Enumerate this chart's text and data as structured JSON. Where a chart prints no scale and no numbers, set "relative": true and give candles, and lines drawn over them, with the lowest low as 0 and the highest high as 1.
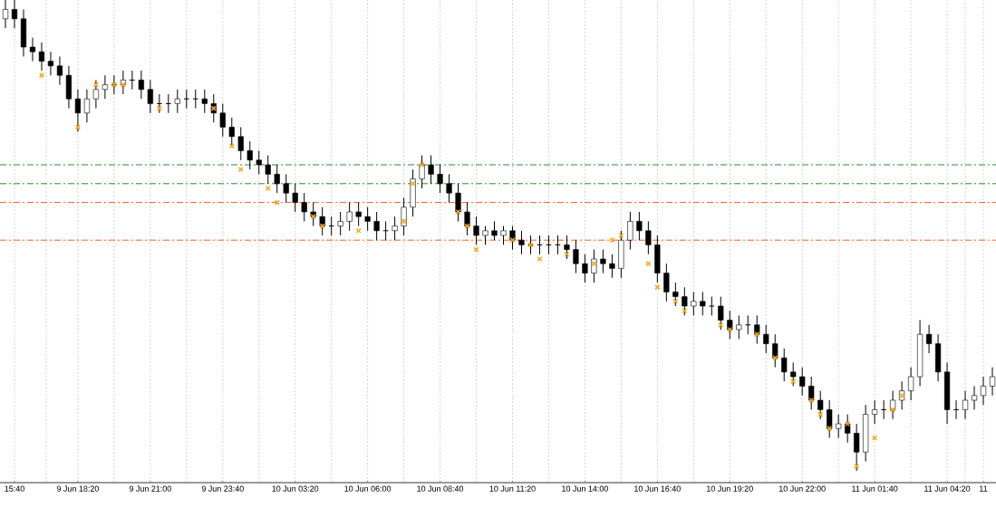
{
  "chart_data": {
    "type": "candlestick",
    "relative": true,
    "grid": true,
    "marker": "cross",
    "categories": [
      null,
      "15:40",
      null,
      null,
      null,
      null,
      null,
      null,
      "9 Jun 18:20",
      null,
      null,
      null,
      null,
      null,
      null,
      null,
      "9 Jun 21:00",
      null,
      null,
      null,
      null,
      null,
      null,
      null,
      "9 Jun 23:40",
      null,
      null,
      null,
      null,
      null,
      null,
      null,
      "10 Jun 03:20",
      null,
      null,
      null,
      null,
      null,
      null,
      null,
      "10 Jun 06:00",
      null,
      null,
      null,
      null,
      null,
      null,
      null,
      "10 Jun 08:40",
      null,
      null,
      null,
      null,
      null,
      null,
      null,
      "10 Jun 11:20",
      null,
      null,
      null,
      null,
      null,
      null,
      null,
      "10 Jun 14:00",
      null,
      null,
      null,
      null,
      null,
      null,
      null,
      "10 Jun 16:40",
      null,
      null,
      null,
      null,
      null,
      null,
      null,
      "10 Jun 19:20",
      null,
      null,
      null,
      null,
      null,
      null,
      null,
      "10 Jun 22:00",
      null,
      null,
      null,
      null,
      null,
      null,
      null,
      "11 Jun 01:40",
      null,
      null,
      null,
      null,
      null,
      null,
      null,
      "11 Jun 04:20",
      null,
      null,
      null,
      "11",
      null
    ],
    "ohlc": [
      [
        0.96,
        1.0,
        0.94,
        0.98
      ],
      [
        0.98,
        1.0,
        0.94,
        0.96
      ],
      [
        0.96,
        0.98,
        0.88,
        0.9
      ],
      [
        0.9,
        0.92,
        0.87,
        0.89
      ],
      [
        0.89,
        0.91,
        0.85,
        0.87
      ],
      [
        0.87,
        0.89,
        0.84,
        0.86
      ],
      [
        0.86,
        0.88,
        0.82,
        0.84
      ],
      [
        0.84,
        0.86,
        0.77,
        0.79
      ],
      [
        0.79,
        0.81,
        0.72,
        0.76
      ],
      [
        0.76,
        0.81,
        0.74,
        0.79
      ],
      [
        0.79,
        0.83,
        0.77,
        0.81
      ],
      [
        0.81,
        0.84,
        0.79,
        0.82
      ],
      [
        0.82,
        0.84,
        0.8,
        0.82
      ],
      [
        0.82,
        0.85,
        0.8,
        0.83
      ],
      [
        0.83,
        0.85,
        0.81,
        0.83
      ],
      [
        0.83,
        0.85,
        0.79,
        0.81
      ],
      [
        0.81,
        0.83,
        0.76,
        0.78
      ],
      [
        0.78,
        0.8,
        0.76,
        0.78
      ],
      [
        0.78,
        0.8,
        0.76,
        0.78
      ],
      [
        0.78,
        0.81,
        0.76,
        0.79
      ],
      [
        0.79,
        0.81,
        0.77,
        0.79
      ],
      [
        0.79,
        0.81,
        0.77,
        0.79
      ],
      [
        0.79,
        0.81,
        0.76,
        0.78
      ],
      [
        0.78,
        0.8,
        0.74,
        0.76
      ],
      [
        0.76,
        0.78,
        0.71,
        0.73
      ],
      [
        0.73,
        0.75,
        0.69,
        0.71
      ],
      [
        0.71,
        0.73,
        0.66,
        0.68
      ],
      [
        0.68,
        0.7,
        0.64,
        0.66
      ],
      [
        0.66,
        0.68,
        0.63,
        0.65
      ],
      [
        0.65,
        0.67,
        0.61,
        0.63
      ],
      [
        0.63,
        0.65,
        0.59,
        0.61
      ],
      [
        0.61,
        0.63,
        0.57,
        0.59
      ],
      [
        0.59,
        0.61,
        0.55,
        0.57
      ],
      [
        0.57,
        0.59,
        0.53,
        0.55
      ],
      [
        0.55,
        0.57,
        0.52,
        0.54
      ],
      [
        0.54,
        0.56,
        0.5,
        0.52
      ],
      [
        0.52,
        0.54,
        0.5,
        0.52
      ],
      [
        0.52,
        0.55,
        0.5,
        0.53
      ],
      [
        0.53,
        0.57,
        0.51,
        0.55
      ],
      [
        0.55,
        0.57,
        0.52,
        0.54
      ],
      [
        0.54,
        0.56,
        0.51,
        0.53
      ],
      [
        0.53,
        0.55,
        0.49,
        0.51
      ],
      [
        0.51,
        0.53,
        0.49,
        0.51
      ],
      [
        0.51,
        0.54,
        0.49,
        0.52
      ],
      [
        0.52,
        0.58,
        0.5,
        0.56
      ],
      [
        0.56,
        0.64,
        0.54,
        0.62
      ],
      [
        0.62,
        0.67,
        0.6,
        0.65
      ],
      [
        0.65,
        0.67,
        0.61,
        0.63
      ],
      [
        0.63,
        0.65,
        0.59,
        0.61
      ],
      [
        0.61,
        0.63,
        0.57,
        0.59
      ],
      [
        0.59,
        0.61,
        0.53,
        0.55
      ],
      [
        0.55,
        0.57,
        0.5,
        0.52
      ],
      [
        0.52,
        0.54,
        0.48,
        0.5
      ],
      [
        0.5,
        0.52,
        0.48,
        0.51
      ],
      [
        0.51,
        0.53,
        0.49,
        0.5
      ],
      [
        0.5,
        0.52,
        0.48,
        0.51
      ],
      [
        0.51,
        0.52,
        0.47,
        0.49
      ],
      [
        0.49,
        0.51,
        0.46,
        0.48
      ],
      [
        0.48,
        0.5,
        0.46,
        0.48
      ],
      [
        0.48,
        0.5,
        0.46,
        0.48
      ],
      [
        0.48,
        0.5,
        0.46,
        0.48
      ],
      [
        0.48,
        0.5,
        0.46,
        0.48
      ],
      [
        0.48,
        0.5,
        0.45,
        0.47
      ],
      [
        0.47,
        0.49,
        0.42,
        0.44
      ],
      [
        0.44,
        0.46,
        0.4,
        0.42
      ],
      [
        0.42,
        0.47,
        0.4,
        0.45
      ],
      [
        0.45,
        0.47,
        0.42,
        0.44
      ],
      [
        0.44,
        0.46,
        0.41,
        0.43
      ],
      [
        0.43,
        0.51,
        0.41,
        0.49
      ],
      [
        0.49,
        0.55,
        0.47,
        0.53
      ],
      [
        0.53,
        0.55,
        0.49,
        0.51
      ],
      [
        0.51,
        0.53,
        0.46,
        0.48
      ],
      [
        0.48,
        0.5,
        0.4,
        0.42
      ],
      [
        0.42,
        0.44,
        0.36,
        0.38
      ],
      [
        0.38,
        0.4,
        0.35,
        0.37
      ],
      [
        0.37,
        0.39,
        0.33,
        0.35
      ],
      [
        0.35,
        0.38,
        0.33,
        0.36
      ],
      [
        0.36,
        0.38,
        0.33,
        0.35
      ],
      [
        0.35,
        0.37,
        0.33,
        0.35
      ],
      [
        0.35,
        0.37,
        0.3,
        0.32
      ],
      [
        0.32,
        0.34,
        0.28,
        0.3
      ],
      [
        0.3,
        0.33,
        0.28,
        0.31
      ],
      [
        0.31,
        0.33,
        0.29,
        0.31
      ],
      [
        0.31,
        0.33,
        0.27,
        0.29
      ],
      [
        0.29,
        0.31,
        0.25,
        0.27
      ],
      [
        0.27,
        0.29,
        0.22,
        0.24
      ],
      [
        0.24,
        0.26,
        0.19,
        0.21
      ],
      [
        0.21,
        0.23,
        0.18,
        0.2
      ],
      [
        0.2,
        0.22,
        0.16,
        0.18
      ],
      [
        0.18,
        0.2,
        0.13,
        0.15
      ],
      [
        0.15,
        0.17,
        0.11,
        0.13
      ],
      [
        0.13,
        0.15,
        0.07,
        0.09
      ],
      [
        0.09,
        0.12,
        0.07,
        0.1
      ],
      [
        0.1,
        0.12,
        0.06,
        0.08
      ],
      [
        0.08,
        0.1,
        0.0,
        0.04
      ],
      [
        0.04,
        0.14,
        0.02,
        0.12
      ],
      [
        0.12,
        0.15,
        0.1,
        0.13
      ],
      [
        0.13,
        0.15,
        0.11,
        0.13
      ],
      [
        0.13,
        0.17,
        0.11,
        0.15
      ],
      [
        0.15,
        0.19,
        0.13,
        0.17
      ],
      [
        0.17,
        0.22,
        0.15,
        0.2
      ],
      [
        0.2,
        0.32,
        0.18,
        0.29
      ],
      [
        0.29,
        0.31,
        0.25,
        0.27
      ],
      [
        0.27,
        0.29,
        0.19,
        0.21
      ],
      [
        0.21,
        0.23,
        0.1,
        0.13
      ],
      [
        0.13,
        0.15,
        0.11,
        0.13
      ],
      [
        0.13,
        0.17,
        0.11,
        0.15
      ],
      [
        0.15,
        0.18,
        0.13,
        0.16
      ],
      [
        0.16,
        0.2,
        0.14,
        0.18
      ],
      [
        0.18,
        0.22,
        0.16,
        0.2
      ]
    ],
    "series": [
      {
        "type": "scatter",
        "color": "#f5a623",
        "values": [
          null,
          null,
          null,
          null,
          0.84,
          null,
          null,
          null,
          0.73,
          null,
          0.82,
          null,
          0.82,
          0.82,
          null,
          null,
          null,
          0.77,
          null,
          null,
          null,
          null,
          null,
          0.77,
          null,
          0.69,
          0.64,
          null,
          null,
          0.6,
          0.57,
          null,
          null,
          null,
          0.54,
          0.52,
          null,
          null,
          null,
          0.51,
          null,
          null,
          null,
          null,
          0.53,
          0.61,
          0.65,
          null,
          null,
          null,
          0.55,
          0.52,
          0.47,
          null,
          null,
          null,
          0.49,
          null,
          0.48,
          0.45,
          null,
          null,
          0.46,
          null,
          null,
          0.44,
          null,
          0.49,
          0.5,
          null,
          null,
          0.44,
          0.39,
          null,
          0.36,
          0.34,
          null,
          null,
          null,
          0.31,
          0.3,
          null,
          null,
          0.29,
          null,
          0.24,
          null,
          0.19,
          null,
          0.15,
          0.12,
          0.09,
          null,
          0.1,
          0.01,
          null,
          0.07,
          null,
          0.13,
          0.16,
          null,
          null,
          null,
          null,
          null,
          null,
          null,
          null,
          null,
          null
        ]
      }
    ],
    "ref_lines": [
      {
        "axis": "y",
        "value": 0.65,
        "color": "#2e8b2e",
        "line_style": "dashed"
      },
      {
        "axis": "y",
        "value": 0.61,
        "color": "#2e8b2e",
        "line_style": "dashed"
      },
      {
        "axis": "y",
        "value": 0.57,
        "color": "#ff5a1f",
        "line_style": "dashed"
      },
      {
        "axis": "y",
        "value": 0.49,
        "color": "#ff5a1f",
        "line_style": "dashed"
      }
    ]
  }
}
